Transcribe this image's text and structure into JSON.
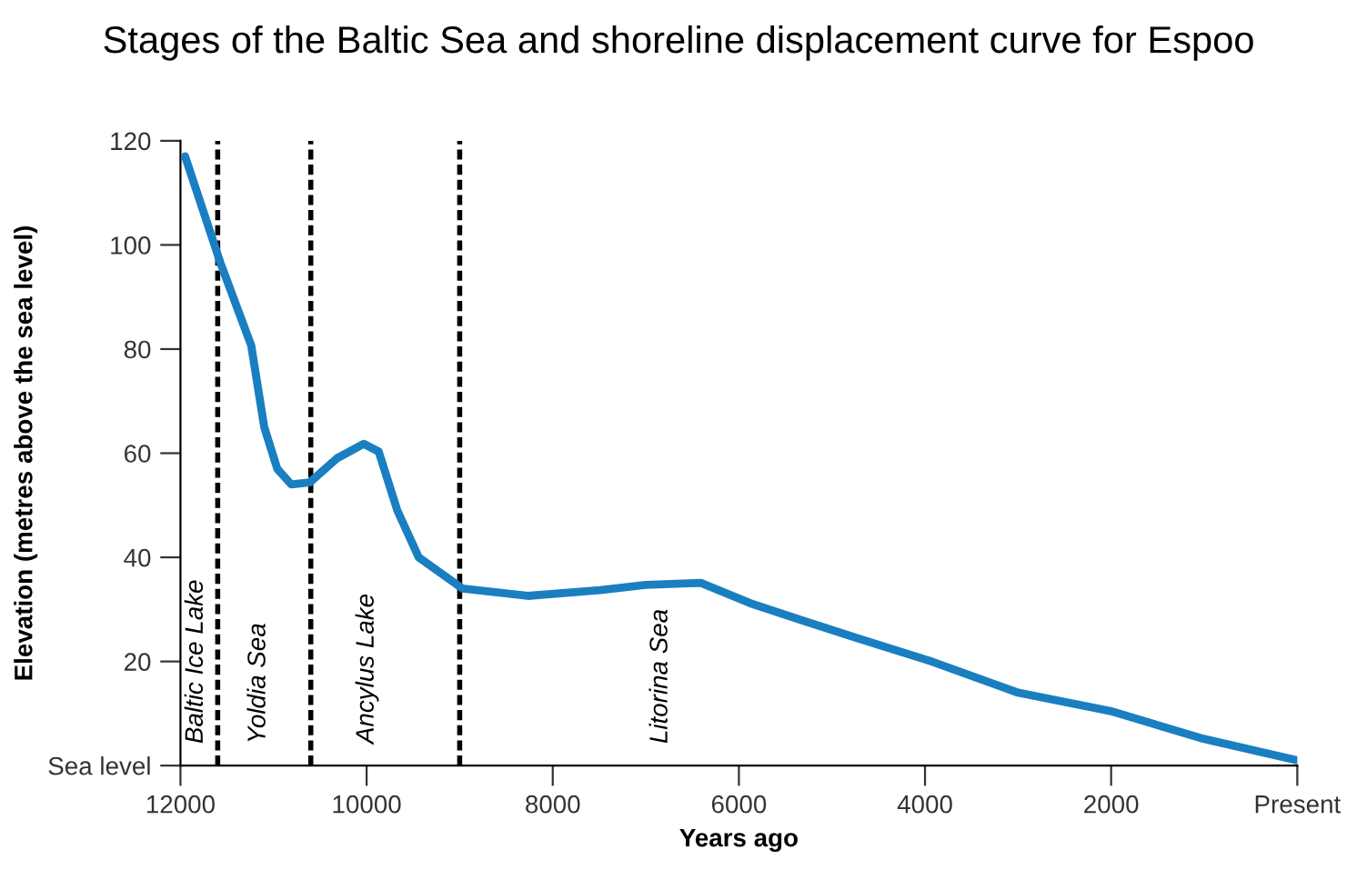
{
  "chart_data": {
    "type": "line",
    "title": "Stages of the Baltic Sea and shoreline displacement curve for Espoo",
    "xlabel": "Years ago",
    "ylabel": "Elevation (metres above the sea level)",
    "series": [
      {
        "color": "#1a7fc1",
        "x": [
          11950,
          11570,
          11240,
          11100,
          10960,
          10810,
          10610,
          10320,
          10030,
          9870,
          9670,
          9440,
          8970,
          8270,
          7490,
          7000,
          6410,
          5880,
          5340,
          4750,
          3930,
          3000,
          2010,
          1040,
          0
        ],
        "values": [
          117,
          96.5,
          80.7,
          65,
          57,
          54,
          54.4,
          59,
          61.8,
          60.3,
          49,
          40,
          34,
          32.6,
          33.7,
          34.7,
          35.1,
          31.2,
          28,
          24.6,
          20,
          14,
          10.5,
          5.3,
          1
        ]
      }
    ],
    "xlim": [
      12000,
      0
    ],
    "ylim": [
      0,
      120
    ],
    "xticks": [
      12000,
      10000,
      8000,
      6000,
      4000,
      2000,
      {
        "value": 0,
        "label": "Present"
      }
    ],
    "yticks": [
      {
        "value": 0,
        "label": "Sea level"
      },
      20,
      40,
      60,
      80,
      100,
      120
    ],
    "ref_lines": [
      {
        "axis": "x",
        "value": 11600,
        "color": "#000000",
        "line_style": "dotted"
      },
      {
        "axis": "x",
        "value": 10600,
        "color": "#000000",
        "line_style": "dotted"
      },
      {
        "axis": "x",
        "value": 9000,
        "color": "#000000",
        "line_style": "dotted"
      }
    ],
    "annotations": [
      "Baltic Ice Lake",
      "Yoldia Sea",
      "Ancylus Lake",
      "Litorina Sea"
    ],
    "grid": false,
    "legend": false,
    "line_style": "solid",
    "marker": "none"
  }
}
